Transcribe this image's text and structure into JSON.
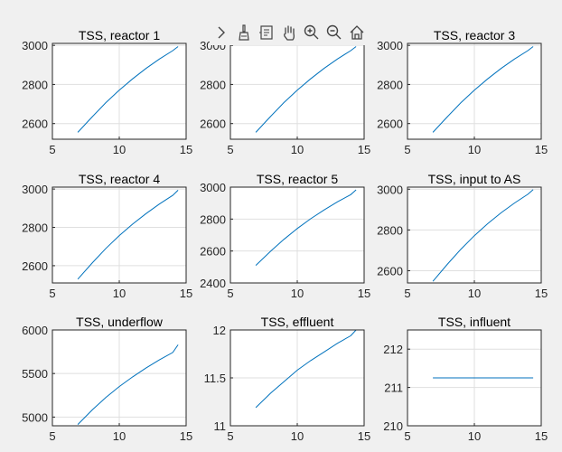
{
  "toolbar": {
    "icons": [
      "expand-chevron-icon",
      "brush-icon",
      "datatip-icon",
      "pan-hand-icon",
      "zoom-in-icon",
      "zoom-out-icon",
      "home-icon"
    ]
  },
  "colors": {
    "line": "#0072BD",
    "grid": "#dfdfdf",
    "axis": "#262626",
    "background": "#f0f0f0"
  },
  "chart_data": [
    {
      "type": "line",
      "title": "TSS, reactor 1",
      "xlim": [
        5,
        15
      ],
      "ylim": [
        2520,
        3010
      ],
      "xticks": [
        5,
        10,
        15
      ],
      "yticks": [
        2600,
        2800,
        3000
      ],
      "grid": true,
      "series": [
        {
          "x": [
            6.9,
            8,
            9,
            10,
            11,
            12,
            13,
            14,
            14.4
          ],
          "y": [
            2555,
            2636,
            2707,
            2771,
            2829,
            2882,
            2930,
            2973,
            2994
          ]
        }
      ]
    },
    {
      "type": "line",
      "title": "",
      "xlim": [
        5,
        15
      ],
      "ylim": [
        2520,
        3010
      ],
      "xticks": [
        5,
        10,
        15
      ],
      "yticks": [
        2600,
        2800,
        3000
      ],
      "grid": true,
      "series": [
        {
          "x": [
            6.9,
            8,
            9,
            10,
            11,
            12,
            13,
            14,
            14.4
          ],
          "y": [
            2555,
            2636,
            2707,
            2771,
            2829,
            2882,
            2930,
            2973,
            2994
          ]
        }
      ]
    },
    {
      "type": "line",
      "title": "TSS, reactor 3",
      "xlim": [
        5,
        15
      ],
      "ylim": [
        2520,
        3010
      ],
      "xticks": [
        5,
        10,
        15
      ],
      "yticks": [
        2600,
        2800,
        3000
      ],
      "grid": true,
      "series": [
        {
          "x": [
            6.9,
            8,
            9,
            10,
            11,
            12,
            13,
            14,
            14.4
          ],
          "y": [
            2555,
            2636,
            2707,
            2771,
            2829,
            2882,
            2930,
            2973,
            2994
          ]
        }
      ]
    },
    {
      "type": "line",
      "title": "TSS, reactor 4",
      "xlim": [
        5,
        15
      ],
      "ylim": [
        2510,
        3010
      ],
      "xticks": [
        5,
        10,
        15
      ],
      "yticks": [
        2600,
        2800,
        3000
      ],
      "grid": true,
      "series": [
        {
          "x": [
            6.9,
            8,
            9,
            10,
            11,
            12,
            13,
            14,
            14.4
          ],
          "y": [
            2530,
            2616,
            2690,
            2757,
            2817,
            2872,
            2922,
            2967,
            2994
          ]
        }
      ]
    },
    {
      "type": "line",
      "title": "TSS, reactor 5",
      "xlim": [
        5,
        15
      ],
      "ylim": [
        2400,
        3000
      ],
      "xticks": [
        5,
        10,
        15
      ],
      "yticks": [
        2400,
        2600,
        2800,
        3000
      ],
      "grid": true,
      "series": [
        {
          "x": [
            6.9,
            8,
            9,
            10,
            11,
            12,
            13,
            14,
            14.4
          ],
          "y": [
            2510,
            2598,
            2673,
            2741,
            2802,
            2857,
            2908,
            2953,
            2983
          ]
        }
      ]
    },
    {
      "type": "line",
      "title": "TSS, input to AS",
      "xlim": [
        5,
        15
      ],
      "ylim": [
        2540,
        3010
      ],
      "xticks": [
        5,
        10,
        15
      ],
      "yticks": [
        2600,
        2800,
        3000
      ],
      "grid": true,
      "series": [
        {
          "x": [
            6.9,
            8,
            9,
            10,
            11,
            12,
            13,
            14,
            14.4
          ],
          "y": [
            2548,
            2633,
            2706,
            2772,
            2831,
            2884,
            2932,
            2975,
            2998
          ]
        }
      ]
    },
    {
      "type": "line",
      "title": "TSS, underflow",
      "xlim": [
        5,
        15
      ],
      "ylim": [
        4900,
        6000
      ],
      "xticks": [
        5,
        10,
        15
      ],
      "yticks": [
        5000,
        5500,
        6000
      ],
      "grid": true,
      "series": [
        {
          "x": [
            6.9,
            8,
            9,
            10,
            11,
            12,
            13,
            14,
            14.4
          ],
          "y": [
            4915,
            5086,
            5226,
            5350,
            5461,
            5563,
            5656,
            5742,
            5830
          ]
        }
      ]
    },
    {
      "type": "line",
      "title": "TSS, effluent",
      "xlim": [
        5,
        15
      ],
      "ylim": [
        11,
        12
      ],
      "xticks": [
        5,
        10,
        15
      ],
      "yticks": [
        11,
        11.5,
        12
      ],
      "grid": true,
      "series": [
        {
          "x": [
            6.9,
            8,
            9,
            10,
            11,
            12,
            13,
            14,
            14.4
          ],
          "y": [
            11.19,
            11.34,
            11.46,
            11.58,
            11.68,
            11.77,
            11.86,
            11.94,
            12.0
          ]
        }
      ]
    },
    {
      "type": "line",
      "title": "TSS, influent",
      "xlim": [
        5,
        15
      ],
      "ylim": [
        210,
        212.5
      ],
      "xticks": [
        5,
        10,
        15
      ],
      "yticks": [
        210,
        211,
        212
      ],
      "grid": true,
      "series": [
        {
          "x": [
            6.9,
            14.4
          ],
          "y": [
            211.25,
            211.25
          ]
        }
      ]
    }
  ]
}
